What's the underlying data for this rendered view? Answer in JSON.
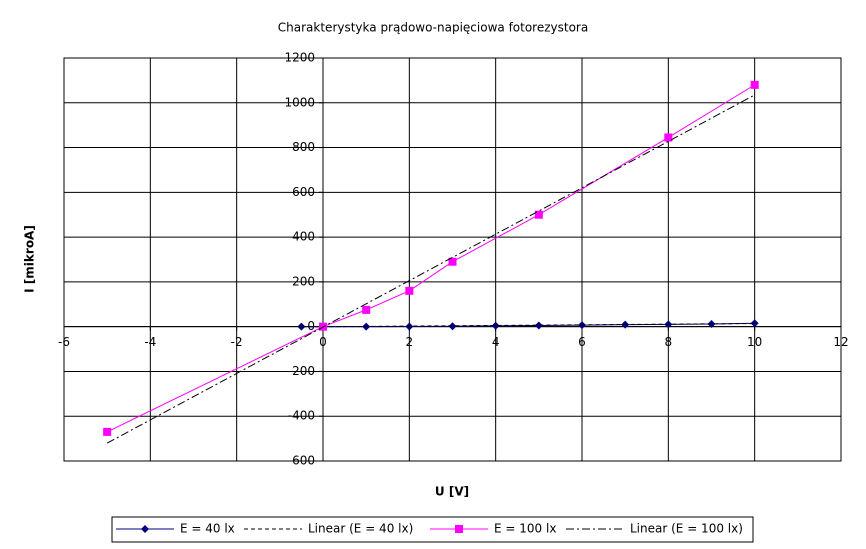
{
  "chart_data": {
    "type": "scatter",
    "title": "Charakterystyka prądowo-napięciowa fotorezystora",
    "x_label": "U [V]",
    "y_label": "I [mikroA]",
    "xlim": [
      -6,
      12
    ],
    "xticks": [
      -6,
      -4,
      -2,
      0,
      2,
      4,
      6,
      8,
      10,
      12
    ],
    "ylim": [
      -600,
      1200
    ],
    "yticks": [
      -600,
      -400,
      -200,
      0,
      200,
      400,
      600,
      800,
      1000,
      1200
    ],
    "grid": true,
    "legend": "bottom",
    "series": [
      {
        "name": "E = 40 lx",
        "color": "#000080",
        "marker": "diamond",
        "line_style": "solid",
        "x": [
          -0.5,
          0,
          1,
          2,
          3,
          4,
          5,
          6,
          7,
          8,
          9,
          10
        ],
        "values": [
          0,
          0,
          0,
          1,
          2,
          4,
          5,
          7,
          9,
          10,
          12,
          15
        ]
      },
      {
        "name": "Linear (E = 40 lx)",
        "color": "#000000",
        "marker": "none",
        "line_style": "dashed",
        "x": [
          -0.5,
          10
        ],
        "values": [
          -1,
          14
        ]
      },
      {
        "name": "E = 100 lx",
        "color": "#ff00ff",
        "marker": "square",
        "line_style": "solid",
        "x": [
          -5,
          0,
          1,
          2,
          3,
          5,
          8,
          10
        ],
        "values": [
          -470,
          0,
          75,
          160,
          290,
          500,
          845,
          1080
        ]
      },
      {
        "name": "Linear (E = 100 lx)",
        "color": "#000000",
        "marker": "none",
        "line_style": "dashdot",
        "x": [
          -5,
          10
        ],
        "values": [
          -520,
          1035
        ]
      }
    ]
  }
}
